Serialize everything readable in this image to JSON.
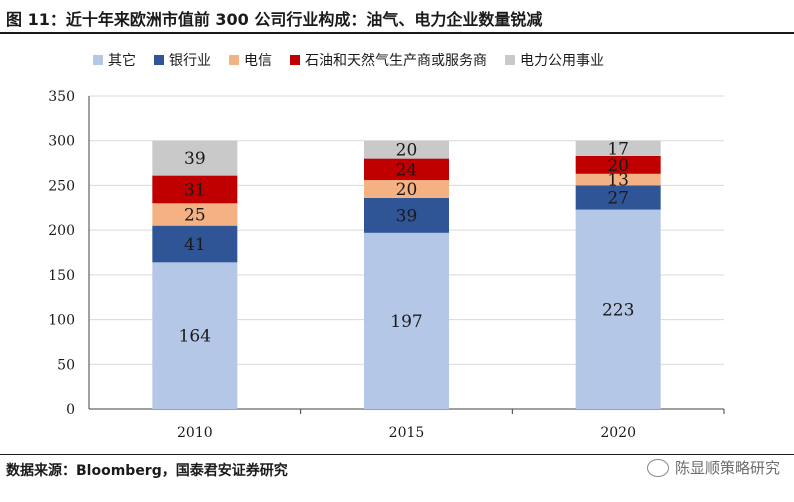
{
  "figure": {
    "title": "图 11：近十年来欧洲市值前 300 公司行业构成：油气、电力企业数量锐减",
    "source": "数据来源：Bloomberg，国泰君安证券研究",
    "watermark": "陈显顺策略研究"
  },
  "chart_data": {
    "type": "bar",
    "stacked": true,
    "categories": [
      "2010",
      "2015",
      "2020"
    ],
    "ylim": [
      0,
      350
    ],
    "yticks": [
      0,
      50,
      100,
      150,
      200,
      250,
      300,
      350
    ],
    "grid": true,
    "legend_position": "top",
    "series": [
      {
        "name": "其它",
        "color": "#b4c7e7",
        "values": [
          164,
          197,
          223
        ]
      },
      {
        "name": "银行业",
        "color": "#2f5597",
        "values": [
          41,
          39,
          27
        ]
      },
      {
        "name": "电信",
        "color": "#f4b183",
        "values": [
          25,
          20,
          13
        ]
      },
      {
        "name": "石油和天然气生产商或服务商",
        "color": "#c00000",
        "values": [
          31,
          24,
          20
        ]
      },
      {
        "name": "电力公用事业",
        "color": "#c9c9c9",
        "values": [
          39,
          20,
          17
        ]
      }
    ]
  }
}
